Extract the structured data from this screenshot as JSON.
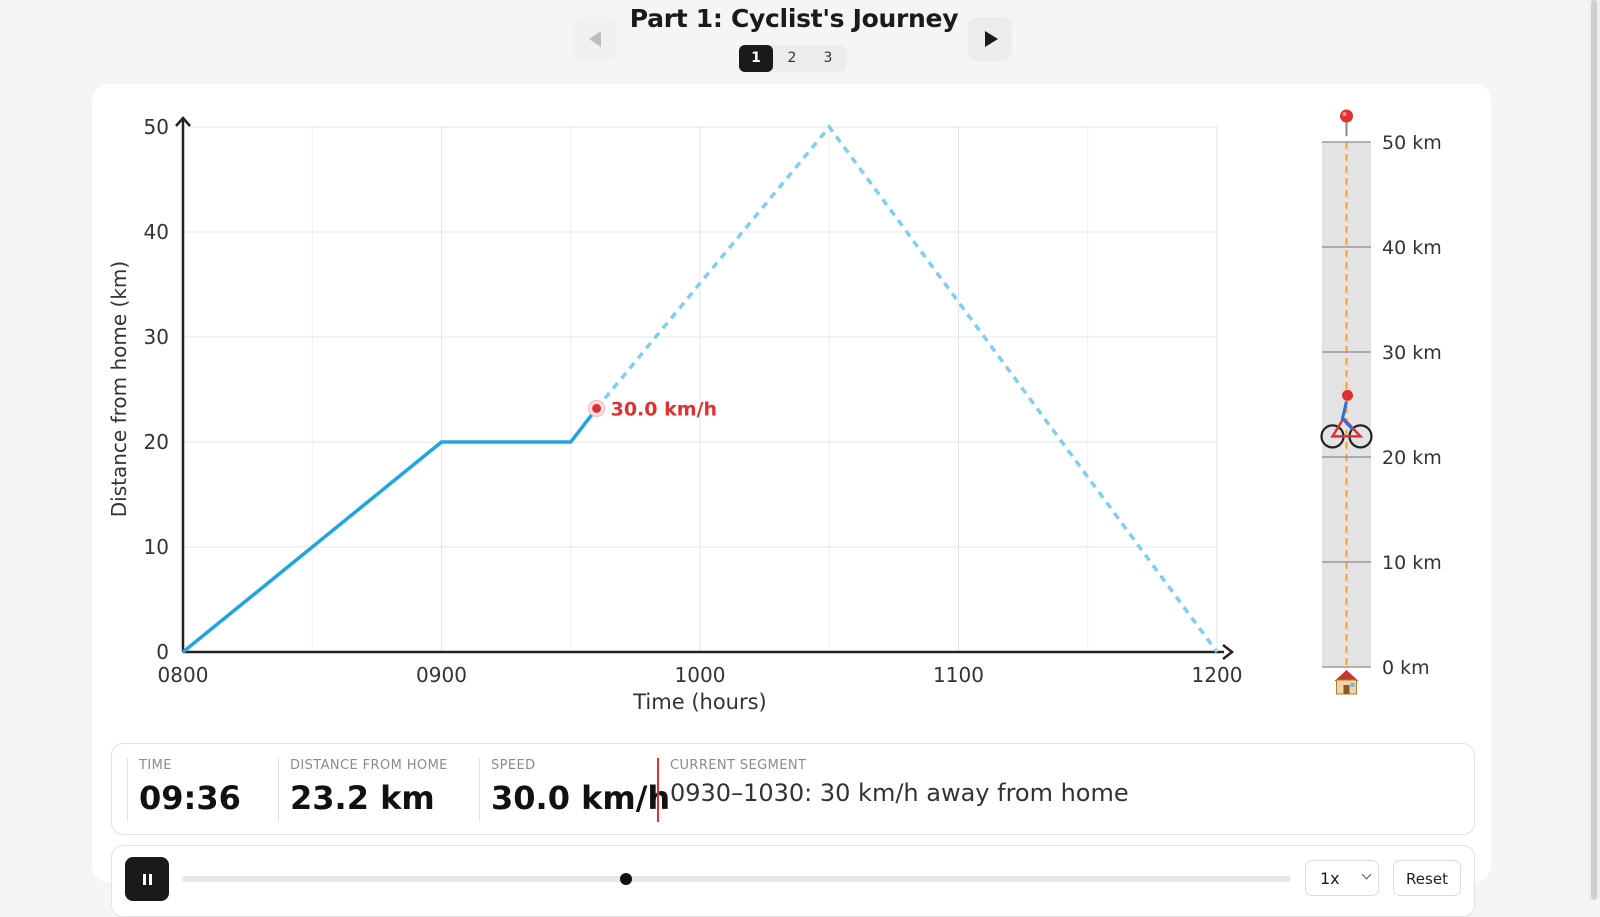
{
  "header": {
    "title": "Part 1: Cyclist's Journey",
    "pages": [
      "1",
      "2",
      "3"
    ],
    "active_page": 0
  },
  "colors": {
    "line_solid": "#1fa5e0",
    "line_dashed": "#7ecff0",
    "marker": "#e03131",
    "track_bg": "#e3e3e6",
    "route": "#f0a030"
  },
  "chart_data": {
    "type": "line",
    "xlabel": "Time (hours)",
    "ylabel": "Distance from home (km)",
    "x_ticks": [
      "0800",
      "0900",
      "1000",
      "1100",
      "1200"
    ],
    "y_ticks": [
      "0",
      "10",
      "20",
      "30",
      "40",
      "50"
    ],
    "xlim": [
      8,
      12
    ],
    "ylim": [
      0,
      50
    ],
    "grid": true,
    "path": [
      {
        "x": 8.0,
        "y": 0
      },
      {
        "x": 9.0,
        "y": 20
      },
      {
        "x": 9.5,
        "y": 20
      },
      {
        "x": 10.5,
        "y": 50
      },
      {
        "x": 12.0,
        "y": 0
      }
    ],
    "current": {
      "x": 9.6,
      "y": 23.2
    },
    "current_label": "30.0 km/h"
  },
  "track": {
    "ticks": [
      "0 km",
      "10 km",
      "20 km",
      "30 km",
      "40 km",
      "50 km"
    ],
    "max_km": 50,
    "home_icon": "house-icon",
    "dest_icon": "pin-icon",
    "rider_icon": "cyclist-icon"
  },
  "info": {
    "time_label": "TIME",
    "time_value": "09:36",
    "distance_label": "DISTANCE FROM HOME",
    "distance_value": "23.2 km",
    "speed_label": "SPEED",
    "speed_value": "30.0 km/h",
    "segment_label": "CURRENT SEGMENT",
    "segment_value": "0930–1030: 30 km/h away from home"
  },
  "controls": {
    "progress": 0.4,
    "speed_value": "1x",
    "reset_label": "Reset",
    "play_icon": "pause-icon"
  }
}
